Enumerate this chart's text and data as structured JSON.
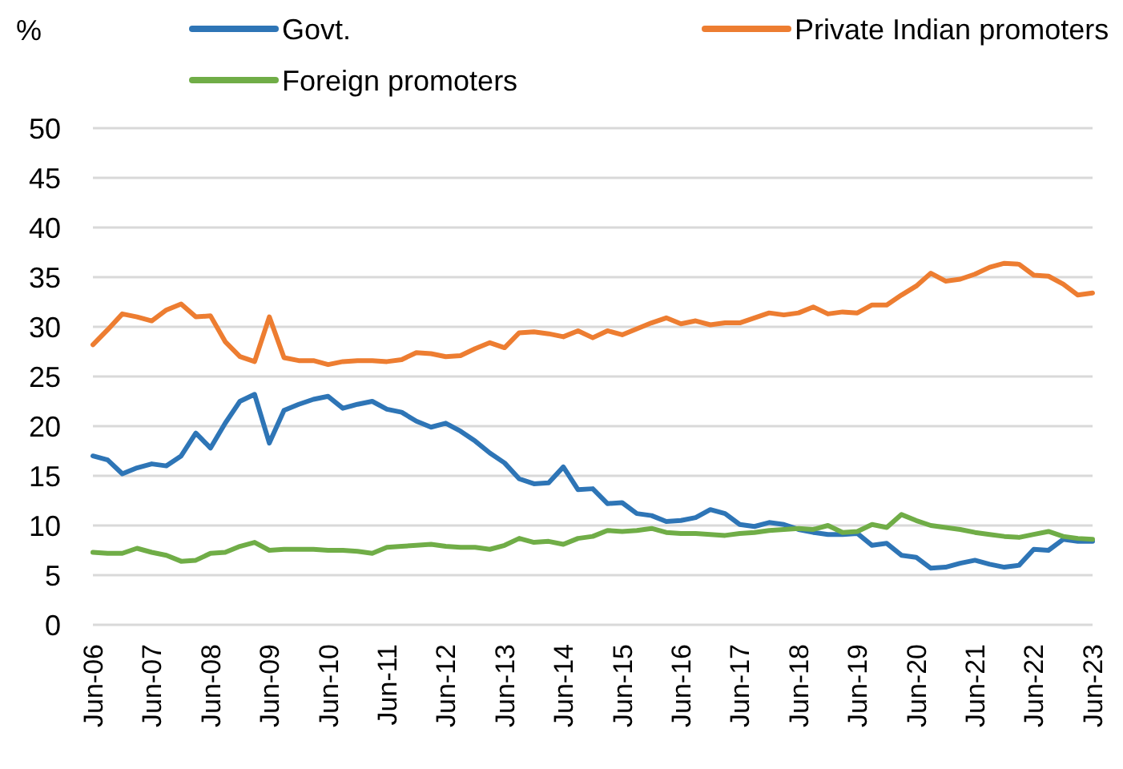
{
  "chart_data": {
    "type": "line",
    "ylabel": "%",
    "categories": [
      "Jun-06",
      null,
      null,
      null,
      "Jun-07",
      null,
      null,
      null,
      "Jun-08",
      null,
      null,
      null,
      "Jun-09",
      null,
      null,
      null,
      "Jun-10",
      null,
      null,
      null,
      "Jun-11",
      null,
      null,
      null,
      "Jun-12",
      null,
      null,
      null,
      "Jun-13",
      null,
      null,
      null,
      "Jun-14",
      null,
      null,
      null,
      "Jun-15",
      null,
      null,
      null,
      "Jun-16",
      null,
      null,
      null,
      "Jun-17",
      null,
      null,
      null,
      "Jun-18",
      null,
      null,
      null,
      "Jun-19",
      null,
      null,
      null,
      "Jun-20",
      null,
      null,
      null,
      "Jun-21",
      null,
      null,
      null,
      "Jun-22",
      null,
      null,
      null,
      "Jun-23"
    ],
    "series": [
      {
        "name": "Govt.",
        "color": "#2e75b6",
        "values": [
          17,
          16.6,
          15.2,
          15.8,
          16.2,
          16,
          17,
          19.3,
          17.8,
          20.3,
          22.5,
          23.2,
          18.3,
          21.6,
          22.2,
          22.7,
          23,
          21.8,
          22.2,
          22.5,
          21.7,
          21.4,
          20.5,
          19.9,
          20.3,
          19.5,
          18.5,
          17.3,
          16.3,
          14.7,
          14.2,
          14.3,
          15.9,
          13.6,
          13.7,
          12.2,
          12.3,
          11.2,
          11,
          10.4,
          10.5,
          10.8,
          11.6,
          11.2,
          10.1,
          9.9,
          10.3,
          10.1,
          9.6,
          9.3,
          9.1,
          9.1,
          9.2,
          8,
          8.2,
          7,
          6.8,
          5.7,
          5.8,
          6.2,
          6.5,
          6.1,
          5.8,
          6,
          7.6,
          7.5,
          8.6,
          8.4,
          8.4
        ]
      },
      {
        "name": "Private Indian promoters",
        "color": "#ed7d31",
        "values": [
          28.2,
          29.7,
          31.3,
          31,
          30.6,
          31.7,
          32.3,
          31,
          31.1,
          28.5,
          27,
          26.5,
          31,
          26.9,
          26.6,
          26.6,
          26.2,
          26.5,
          26.6,
          26.6,
          26.5,
          26.7,
          27.4,
          27.3,
          27,
          27.1,
          27.8,
          28.4,
          27.9,
          29.4,
          29.5,
          29.3,
          29,
          29.6,
          28.9,
          29.6,
          29.2,
          29.8,
          30.4,
          30.9,
          30.3,
          30.6,
          30.2,
          30.4,
          30.4,
          30.9,
          31.4,
          31.2,
          31.4,
          32,
          31.3,
          31.5,
          31.4,
          32.2,
          32.2,
          33.2,
          34.1,
          35.4,
          34.6,
          34.8,
          35.3,
          36,
          36.4,
          36.3,
          35.2,
          35.1,
          34.3,
          33.2,
          33.4
        ]
      },
      {
        "name": "Foreign promoters",
        "color": "#70ad47",
        "values": [
          7.3,
          7.2,
          7.2,
          7.7,
          7.3,
          7,
          6.4,
          6.5,
          7.2,
          7.3,
          7.9,
          8.3,
          7.5,
          7.6,
          7.6,
          7.6,
          7.5,
          7.5,
          7.4,
          7.2,
          7.8,
          7.9,
          8,
          8.1,
          7.9,
          7.8,
          7.8,
          7.6,
          8,
          8.7,
          8.3,
          8.4,
          8.1,
          8.7,
          8.9,
          9.5,
          9.4,
          9.5,
          9.7,
          9.3,
          9.2,
          9.2,
          9.1,
          9,
          9.2,
          9.3,
          9.5,
          9.6,
          9.7,
          9.6,
          10,
          9.3,
          9.4,
          10.1,
          9.8,
          11.1,
          10.5,
          10,
          9.8,
          9.6,
          9.3,
          9.1,
          8.9,
          8.8,
          9.1,
          9.4,
          8.9,
          8.7,
          8.6
        ]
      }
    ],
    "ylim": [
      0,
      50
    ],
    "yticks": [
      0,
      5,
      10,
      15,
      20,
      25,
      30,
      35,
      40,
      45,
      50
    ],
    "grid": "y",
    "legend": "top",
    "marker": "none",
    "line_style": "solid"
  }
}
